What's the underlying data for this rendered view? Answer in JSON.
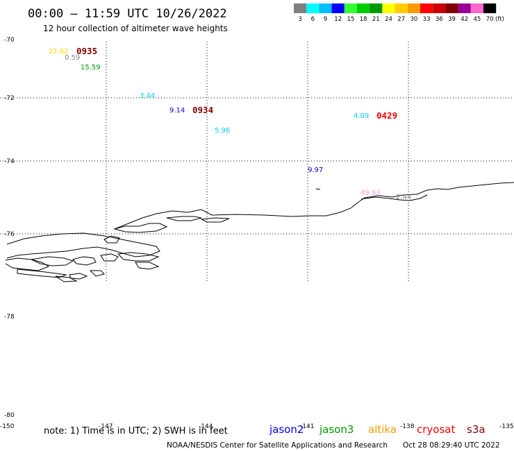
{
  "header": {
    "title": "00:00 – 11:59 UTC 10/26/2022",
    "subtitle": "12 hour collection of altimeter wave heights"
  },
  "legend": {
    "unit": "(ft)",
    "entries": [
      {
        "label": "3",
        "color": "#808080"
      },
      {
        "label": "6",
        "color": "#00ffff"
      },
      {
        "label": "9",
        "color": "#00bfff"
      },
      {
        "label": "12",
        "color": "#0000ff"
      },
      {
        "label": "15",
        "color": "#33ff33"
      },
      {
        "label": "18",
        "color": "#00cc00"
      },
      {
        "label": "21",
        "color": "#009900"
      },
      {
        "label": "24",
        "color": "#ffff00"
      },
      {
        "label": "27",
        "color": "#ffcc00"
      },
      {
        "label": "30",
        "color": "#ff9900"
      },
      {
        "label": "33",
        "color": "#ff0000"
      },
      {
        "label": "36",
        "color": "#cc0000"
      },
      {
        "label": "39",
        "color": "#800000"
      },
      {
        "label": "42",
        "color": "#990099"
      },
      {
        "label": "45",
        "color": "#ff66cc"
      },
      {
        "label": "70",
        "color": "#000000"
      }
    ]
  },
  "axes": {
    "lat_labels": [
      "-70",
      "-72",
      "-74",
      "-76",
      "-78",
      "-80"
    ],
    "lon_labels": [
      "-150",
      "-147",
      "-144",
      "-141",
      "-138",
      "-135"
    ]
  },
  "observations": [
    {
      "id": "obs-1",
      "text": "22.62",
      "color": "#ffd700"
    },
    {
      "id": "obs-2",
      "text": "0935",
      "color": "#800000",
      "kind": "time"
    },
    {
      "id": "obs-3",
      "text": "0.59",
      "color": "#808080"
    },
    {
      "id": "obs-4",
      "text": "15.59",
      "color": "#009900"
    },
    {
      "id": "obs-5",
      "text": "3.44",
      "color": "#00ccff"
    },
    {
      "id": "obs-6",
      "text": "9.14",
      "color": "#0000cc"
    },
    {
      "id": "obs-7",
      "text": "0934",
      "color": "#800000",
      "kind": "time"
    },
    {
      "id": "obs-8",
      "text": "5.96",
      "color": "#00ccff"
    },
    {
      "id": "obs-9",
      "text": "4.09",
      "color": "#00ccff"
    },
    {
      "id": "obs-10",
      "text": "0429",
      "color": "#ff0000",
      "kind": "time"
    },
    {
      "id": "obs-11",
      "text": "9.97",
      "color": "#0000cc"
    },
    {
      "id": "obs-12",
      "text": "49.93",
      "color": "#ff99dd"
    },
    {
      "id": "obs-13",
      "text": "2.44",
      "color": "#808080"
    }
  ],
  "note": "note: 1) Time is in UTC; 2) SWH is in feet",
  "missions": [
    {
      "name": "jason2",
      "color": "#0000ff"
    },
    {
      "name": "jason3",
      "color": "#009900"
    },
    {
      "name": "altika",
      "color": "#ff9900"
    },
    {
      "name": "cryosat",
      "color": "#ff0000"
    },
    {
      "name": "s3a",
      "color": "#800000"
    }
  ],
  "footer": {
    "credit": "NOAA/NESDIS Center for Satellite Applications and Research",
    "timestamp": "Oct 28 08:29:40 UTC 2022"
  }
}
